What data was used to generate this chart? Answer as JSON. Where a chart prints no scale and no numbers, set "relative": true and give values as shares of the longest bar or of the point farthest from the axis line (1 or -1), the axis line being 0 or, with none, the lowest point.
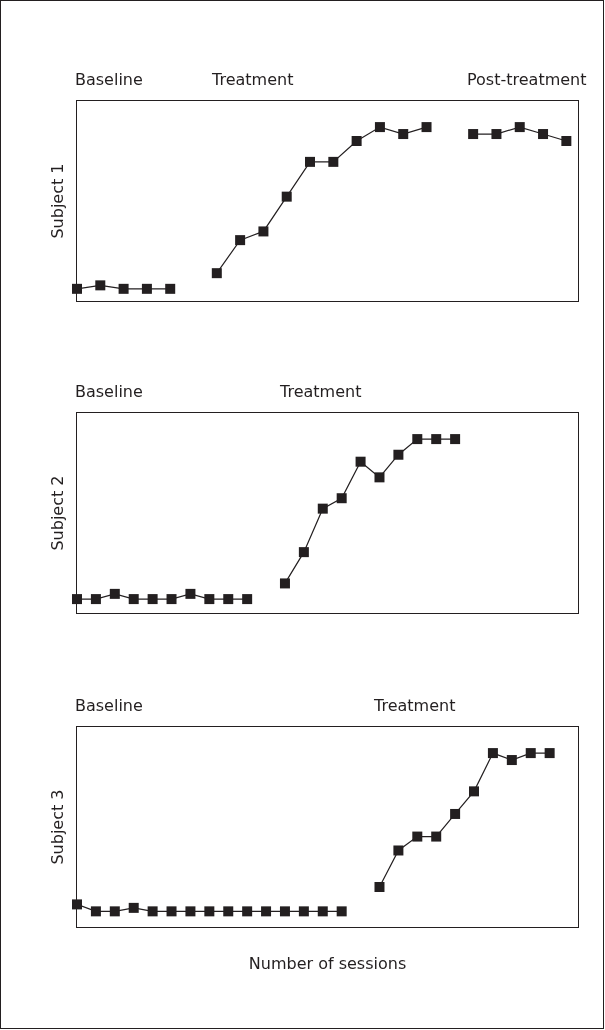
{
  "chart_data": [
    {
      "type": "line",
      "ylabel": "Subject 1",
      "relative": true,
      "marker": "square",
      "line_style": "solid",
      "grid": false,
      "annotations": [
        "Baseline",
        "Treatment",
        "Post-treatment"
      ],
      "categories": [
        null,
        null,
        null,
        null,
        null,
        null,
        null,
        null,
        null,
        null,
        null,
        null,
        null,
        null,
        null,
        null,
        null,
        null,
        null,
        null,
        null,
        null
      ],
      "series": [
        {
          "color": "#231f20",
          "values": [
            0.07,
            0.09,
            0.07,
            0.07,
            0.07,
            null,
            null,
            null,
            null,
            null,
            null,
            null,
            null,
            null,
            null,
            null,
            null,
            null,
            null,
            null,
            null,
            null
          ]
        },
        {
          "color": "#231f20",
          "values": [
            null,
            null,
            null,
            null,
            null,
            null,
            0.16,
            0.35,
            0.4,
            0.6,
            0.8,
            0.8,
            0.92,
            1.0,
            0.96,
            1.0,
            null,
            null,
            null,
            null,
            null,
            null
          ]
        },
        {
          "color": "#231f20",
          "values": [
            null,
            null,
            null,
            null,
            null,
            null,
            null,
            null,
            null,
            null,
            null,
            null,
            null,
            null,
            null,
            null,
            null,
            0.96,
            0.96,
            1.0,
            0.96,
            0.92
          ]
        }
      ]
    },
    {
      "type": "line",
      "ylabel": "Subject 2",
      "relative": true,
      "marker": "square",
      "line_style": "solid",
      "grid": false,
      "annotations": [
        "Baseline",
        "Treatment"
      ],
      "categories": [
        null,
        null,
        null,
        null,
        null,
        null,
        null,
        null,
        null,
        null,
        null,
        null,
        null,
        null,
        null,
        null,
        null,
        null,
        null,
        null,
        null,
        null,
        null,
        null,
        null,
        null,
        null
      ],
      "series": [
        {
          "color": "#231f20",
          "values": [
            0.08,
            0.08,
            0.11,
            0.08,
            0.08,
            0.08,
            0.11,
            0.08,
            0.08,
            0.08,
            null,
            null,
            null,
            null,
            null,
            null,
            null,
            null,
            null,
            null,
            null,
            null,
            null,
            null,
            null,
            null,
            null
          ]
        },
        {
          "color": "#231f20",
          "values": [
            null,
            null,
            null,
            null,
            null,
            null,
            null,
            null,
            null,
            null,
            null,
            0.17,
            0.35,
            0.6,
            0.66,
            0.87,
            0.78,
            0.91,
            1.0,
            1.0,
            1.0,
            null,
            null,
            null,
            null,
            null,
            null
          ]
        }
      ]
    },
    {
      "type": "line",
      "ylabel": "Subject 3",
      "xlabel": "Number of sessions",
      "relative": true,
      "marker": "square",
      "line_style": "solid",
      "grid": false,
      "annotations": [
        "Baseline",
        "Treatment"
      ],
      "categories": [
        null,
        null,
        null,
        null,
        null,
        null,
        null,
        null,
        null,
        null,
        null,
        null,
        null,
        null,
        null,
        null,
        null,
        null,
        null,
        null,
        null,
        null,
        null,
        null,
        null,
        null,
        null
      ],
      "series": [
        {
          "color": "#231f20",
          "values": [
            0.13,
            0.09,
            0.09,
            0.11,
            0.09,
            0.09,
            0.09,
            0.09,
            0.09,
            0.09,
            0.09,
            0.09,
            0.09,
            0.09,
            0.09,
            null,
            null,
            null,
            null,
            null,
            null,
            null,
            null,
            null,
            null,
            null,
            null
          ]
        },
        {
          "color": "#231f20",
          "values": [
            null,
            null,
            null,
            null,
            null,
            null,
            null,
            null,
            null,
            null,
            null,
            null,
            null,
            null,
            null,
            null,
            0.23,
            0.44,
            0.52,
            0.52,
            0.65,
            0.78,
            1.0,
            0.96,
            1.0,
            1.0,
            null
          ]
        }
      ]
    }
  ]
}
